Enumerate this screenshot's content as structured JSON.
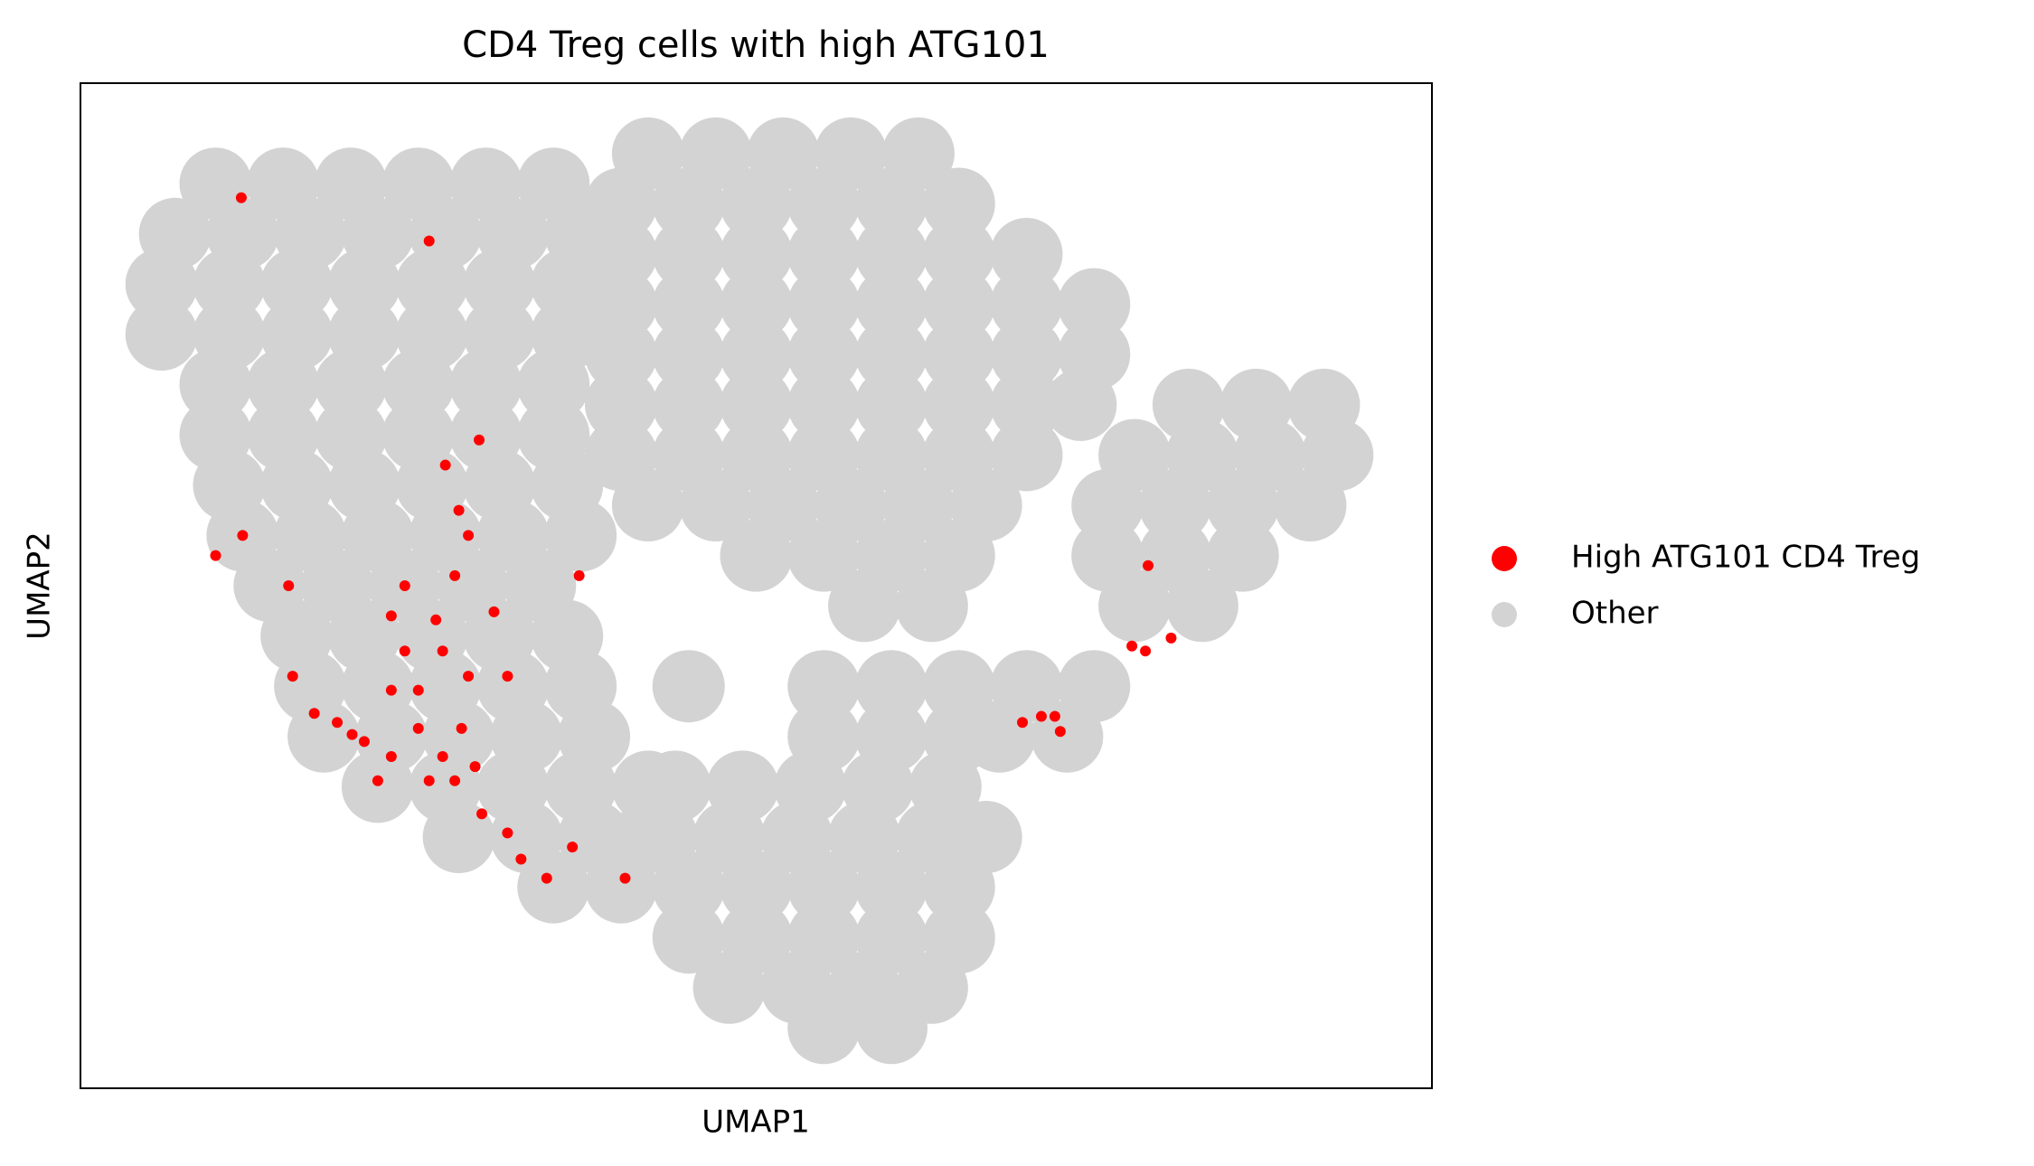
{
  "chart_data": {
    "type": "scatter",
    "title": "CD4 Treg cells with high ATG101",
    "x_label": "UMAP1",
    "y_label": "UMAP2",
    "xlim": [
      0,
      100
    ],
    "ylim": [
      0,
      100
    ],
    "legend": "right",
    "series": [
      {
        "name": "High ATG101 CD4 Treg",
        "color": "#ff0000",
        "x": [
          12,
          10,
          15.4,
          27,
          28,
          29.5,
          23,
          27.7,
          24,
          26.8,
          28.7,
          31.6,
          23,
          19,
          21,
          23,
          25,
          26.8,
          28.2,
          25.8,
          27.7,
          29.7,
          31.6,
          32.6,
          36.4,
          34.5,
          40.3,
          15.7,
          17.3,
          25.8,
          11.9,
          36.9,
          30.6,
          24,
          25,
          22,
          79,
          78.8,
          80.7,
          77.8,
          69.7,
          71.1,
          72.1,
          72.5,
          28.7,
          26.3,
          29.2,
          20.1
        ],
        "y": [
          55,
          53,
          50,
          62,
          57.5,
          64.5,
          47,
          51,
          43.5,
          43.5,
          41,
          41,
          39.6,
          36.4,
          34.5,
          33,
          35.8,
          33,
          35.8,
          30.6,
          30.6,
          27.3,
          25.4,
          22.8,
          24,
          20.9,
          20.9,
          41,
          37.3,
          84.3,
          88.6,
          51,
          47.4,
          50,
          39.6,
          30.6,
          52,
          43.5,
          44.8,
          44,
          36.4,
          37,
          37,
          35.5,
          55,
          46.6,
          32,
          35.2
        ]
      },
      {
        "name": "Other",
        "color": "#d3d3d3",
        "x": [
          10,
          15,
          20,
          25,
          30,
          35,
          7,
          12,
          17,
          22,
          27,
          32,
          37,
          6,
          11,
          16,
          21,
          26,
          31,
          36,
          6,
          11,
          16,
          21,
          26,
          31,
          36,
          10,
          15,
          20,
          25,
          30,
          35,
          10,
          15,
          20,
          25,
          30,
          35,
          11,
          16,
          21,
          26,
          31,
          36,
          12,
          17,
          22,
          27,
          32,
          37,
          14,
          19,
          24,
          29,
          34,
          16,
          21,
          26,
          31,
          36,
          17,
          22,
          27,
          32,
          37,
          18,
          23,
          28,
          33,
          38,
          22,
          27,
          32,
          37,
          42,
          28,
          33,
          38,
          42,
          35,
          40,
          42,
          47,
          52,
          57,
          62,
          40,
          45,
          50,
          55,
          60,
          65,
          40,
          45,
          50,
          55,
          60,
          65,
          70,
          40,
          45,
          50,
          55,
          60,
          65,
          70,
          75,
          40,
          45,
          50,
          55,
          60,
          65,
          70,
          75,
          40,
          45,
          50,
          55,
          60,
          65,
          70,
          74,
          40,
          45,
          50,
          55,
          60,
          65,
          70,
          42,
          47,
          52,
          57,
          62,
          67,
          50,
          55,
          60,
          65,
          58,
          63,
          82,
          87,
          92,
          78,
          83,
          88,
          93,
          76,
          81,
          86,
          91,
          76,
          81,
          86,
          78,
          83,
          70,
          75,
          68,
          73,
          45,
          55,
          60,
          65,
          55,
          60,
          65,
          44,
          49,
          54,
          59,
          64,
          43,
          48,
          53,
          58,
          63,
          67,
          45,
          50,
          55,
          60,
          65,
          45,
          50,
          55,
          60,
          65,
          48,
          53,
          58,
          63,
          55,
          60
        ],
        "y": [
          90,
          90,
          90,
          90,
          90,
          90,
          85,
          85,
          85,
          85,
          85,
          85,
          85,
          80,
          80,
          80,
          80,
          80,
          80,
          80,
          75,
          75,
          75,
          75,
          75,
          75,
          75,
          70,
          70,
          70,
          70,
          70,
          70,
          65,
          65,
          65,
          65,
          65,
          65,
          60,
          60,
          60,
          60,
          60,
          60,
          55,
          55,
          55,
          55,
          55,
          55,
          50,
          50,
          50,
          50,
          50,
          45,
          45,
          45,
          45,
          45,
          40,
          40,
          40,
          40,
          40,
          35,
          35,
          35,
          35,
          35,
          30,
          30,
          30,
          30,
          30,
          25,
          25,
          25,
          25,
          20,
          20,
          93,
          93,
          93,
          93,
          93,
          88,
          88,
          88,
          88,
          88,
          88,
          83,
          83,
          83,
          83,
          83,
          83,
          83,
          78,
          78,
          78,
          78,
          78,
          78,
          78,
          78,
          73,
          73,
          73,
          73,
          73,
          73,
          73,
          73,
          68,
          68,
          68,
          68,
          68,
          68,
          68,
          68,
          63,
          63,
          63,
          63,
          63,
          63,
          63,
          58,
          58,
          58,
          58,
          58,
          58,
          53,
          53,
          53,
          53,
          48,
          48,
          68,
          68,
          68,
          63,
          63,
          63,
          63,
          58,
          58,
          58,
          58,
          53,
          53,
          53,
          48,
          48,
          40,
          40,
          35,
          35,
          40,
          40,
          40,
          40,
          35,
          35,
          35,
          30,
          30,
          30,
          30,
          30,
          25,
          25,
          25,
          25,
          25,
          25,
          20,
          20,
          20,
          20,
          20,
          15,
          15,
          15,
          15,
          15,
          10,
          10,
          10,
          10,
          6,
          6
        ]
      }
    ]
  }
}
